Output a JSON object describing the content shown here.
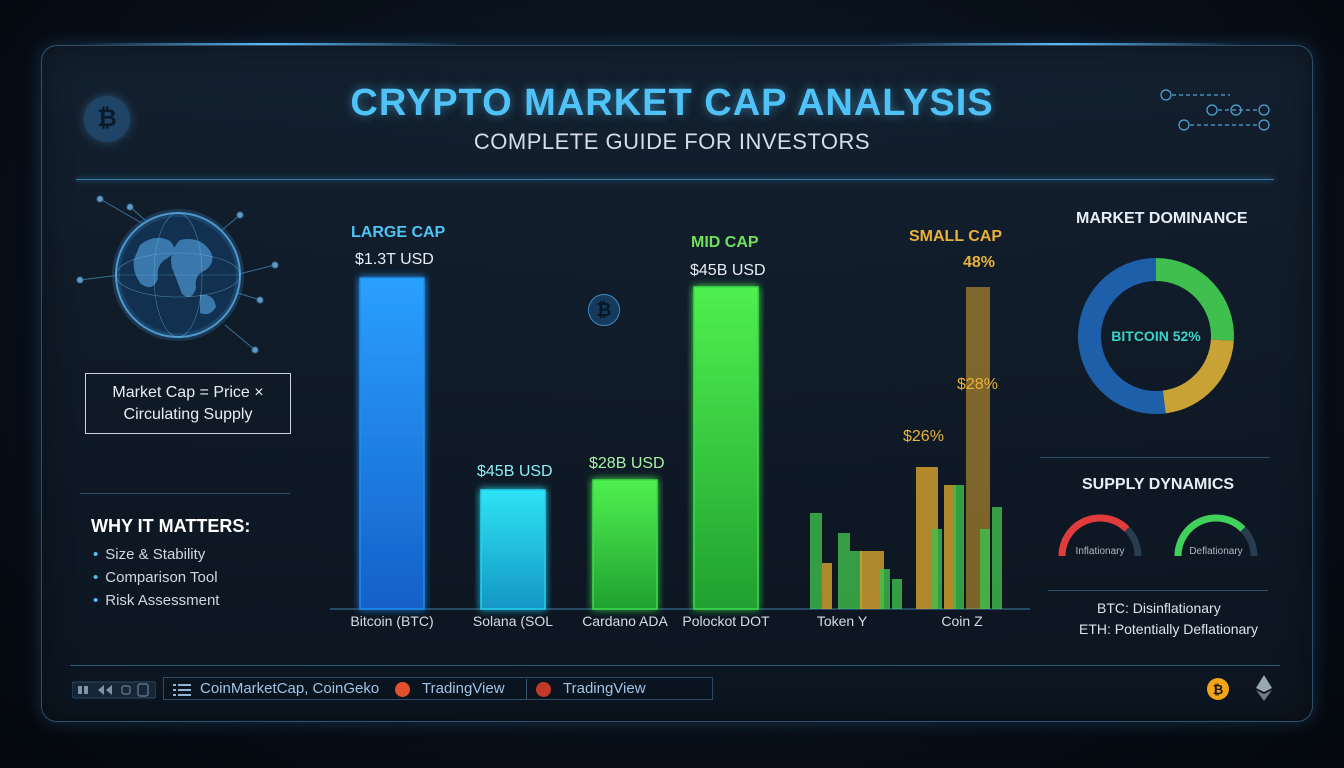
{
  "header": {
    "title": "CRYPTO MARKET CAP ANALYSIS",
    "subtitle": "COMPLETE GUIDE FOR INVESTORS"
  },
  "left": {
    "formula": "Market Cap = Price × Circulating Supply",
    "why_title": "WHY IT MATTERS:",
    "why_items": [
      "Size & Stability",
      "Comparison Tool",
      "Risk Assessment"
    ]
  },
  "chart_data": {
    "type": "bar",
    "tiers": [
      {
        "name": "LARGE CAP",
        "color": "#4fc3f7"
      },
      {
        "name": "MID CAP",
        "color": "#6ee05a"
      },
      {
        "name": "SMALL CAP",
        "color": "#e8b23a"
      }
    ],
    "categories": [
      "Bitcoin (BTC)",
      "Solana (SOL",
      "Cardano ADA",
      "Polockot DOT",
      "Token Y",
      "Coin Z"
    ],
    "value_labels": [
      "$1.3T USD",
      "$45B USD",
      "$28B USD",
      "$45B USD",
      "$26%",
      "$28%"
    ],
    "extra_labels": [
      "48%"
    ],
    "colors": [
      "#1f8ff0",
      "#22d3ee",
      "#3ddc4a",
      "#3ddc4a",
      "#d9a52e",
      "#d9a52e"
    ]
  },
  "dominance": {
    "title": "MARKET DOMINANCE",
    "center_label": "BITCOIN 52%",
    "slices": [
      {
        "value": 52,
        "color": "#1d5fa8"
      },
      {
        "value": 26,
        "color": "#3fbf4e"
      },
      {
        "value": 22,
        "color": "#c9a236"
      }
    ]
  },
  "supply": {
    "title": "SUPPLY DYNAMICS",
    "gauges": [
      {
        "label": "Inflationary",
        "color": "#e23b3b",
        "level": 0.75
      },
      {
        "label": "Deflationary",
        "color": "#3fd15a",
        "level": 0.75
      }
    ],
    "notes": [
      "BTC: Disinflationary",
      "ETH: Potentially Deflationary"
    ]
  },
  "footer": {
    "sources": [
      "CoinMarketCap, CoinGeko",
      "TradingView",
      "TradingView"
    ]
  },
  "icons": {
    "btc": "₿",
    "eth": "◆"
  }
}
